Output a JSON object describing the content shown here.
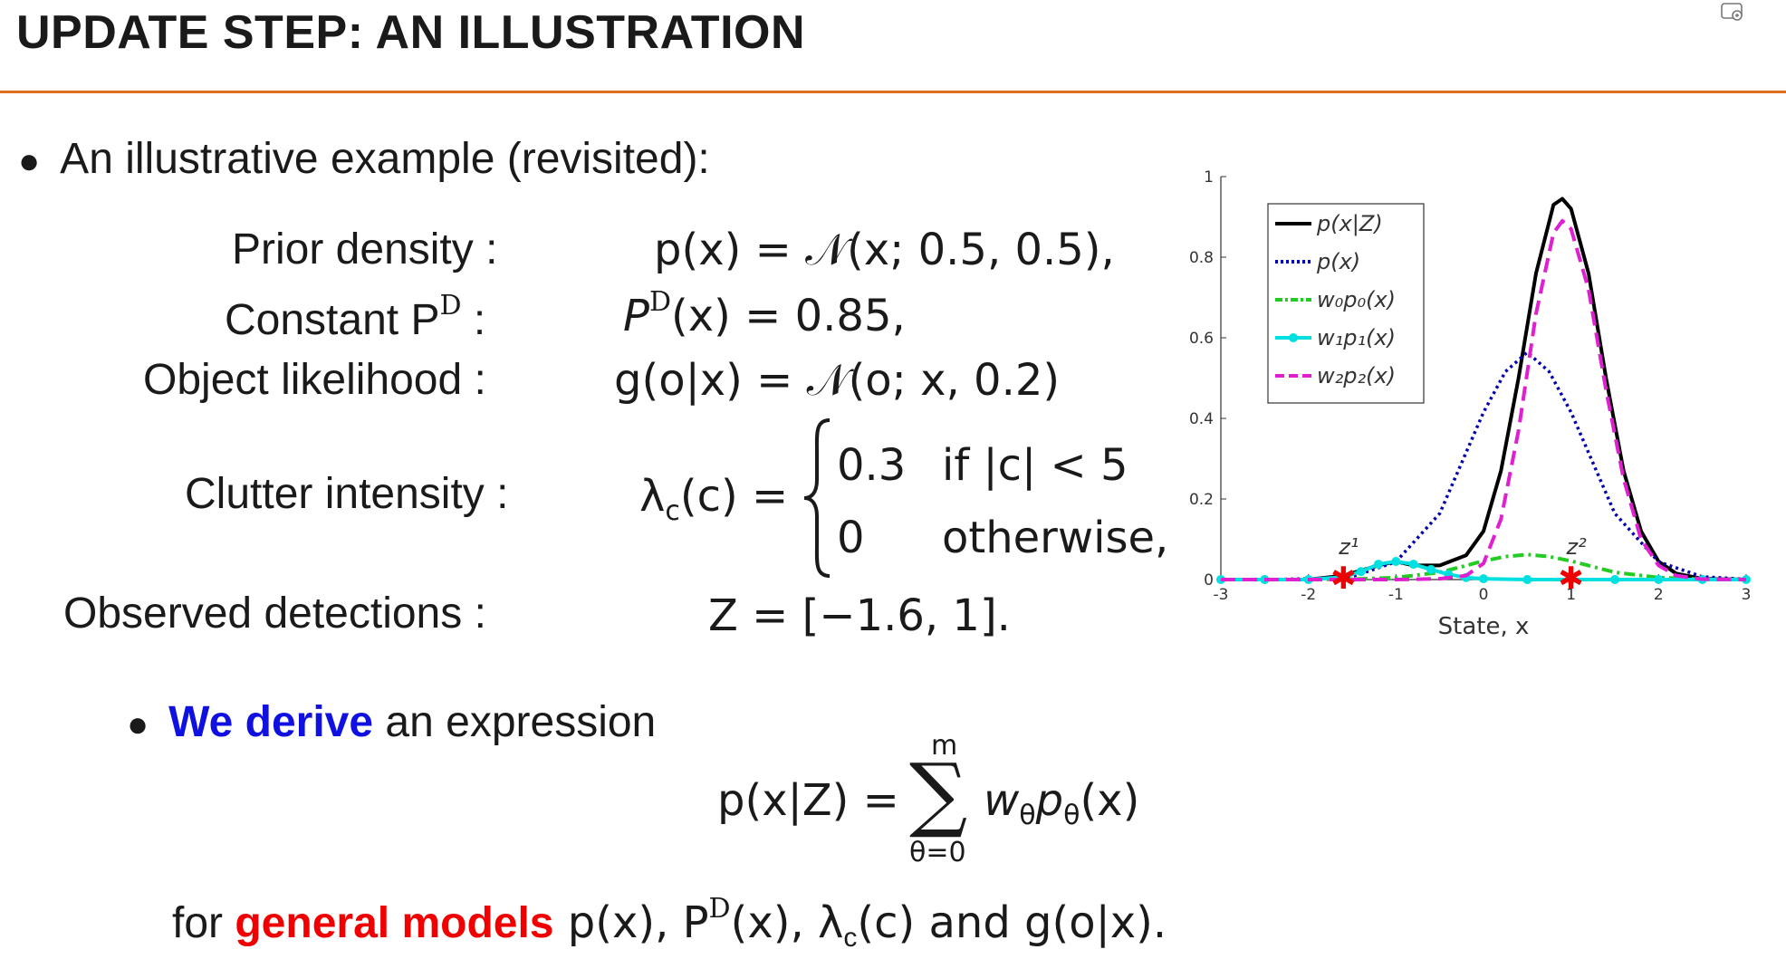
{
  "slide": {
    "title": "UPDATE STEP: AN ILLUSTRATION",
    "bullet1": "An illustrative example (revisited):",
    "labels": {
      "prior": "Prior density :",
      "constant_pd": "Constant P",
      "constant_pd_colon": ":",
      "likelihood": "Object likelihood :",
      "clutter": "Clutter intensity :",
      "observed": "Observed detections :"
    },
    "eq": {
      "prior": "p(x) = 𝒩(x; 0.5, 0.5),",
      "pd": "(x) = 0.85,",
      "likelihood": "g(o|x) = 𝒩(o; x, 0.2)",
      "clutter_lhs": "λ",
      "clutter_lhs_rest": "(c) =",
      "case1_value": "0.3",
      "case1_cond": "if |c| < 5",
      "case2_value": "0",
      "case2_cond": "otherwise,",
      "detections": "Z = [−1.6, 1]."
    },
    "bullet2_highlight": "We derive",
    "bullet2_rest": " an expression",
    "sum_lhs": "p(x|Z) =",
    "sum_upper": "m",
    "sum_lower": "θ=0",
    "sum_rhs": "w",
    "sum_rhs2": "p",
    "sum_rhs3": "(x)",
    "footer_prefix": "for ",
    "footer_highlight": "general models",
    "footer_rest": "  p(x), P",
    "footer_rest2": "(x), λ",
    "footer_rest3": "(c) and g(o|x)."
  },
  "colors": {
    "accent_rule": "#e06c1f",
    "highlight_blue": "#1010e0",
    "highlight_red": "#f00000"
  },
  "chart_data": {
    "type": "line",
    "xlabel": "State, x",
    "ylabel": "",
    "xlim": [
      -3,
      3
    ],
    "ylim": [
      0,
      1
    ],
    "xticks": [
      -3,
      -2,
      -1,
      0,
      1,
      2,
      3
    ],
    "yticks": [
      0,
      0.2,
      0.4,
      0.6,
      0.8,
      1
    ],
    "legend_position": "top-left",
    "grid": false,
    "annotations": [
      {
        "text": "z¹",
        "x": -1.6
      },
      {
        "text": "z²",
        "x": 1
      }
    ],
    "detections": [
      -1.6,
      1
    ],
    "series": [
      {
        "name": "p(x|Z)",
        "color": "#000000",
        "style": "solid",
        "x": [
          -3,
          -2.5,
          -2,
          -1.6,
          -1.2,
          -1,
          -0.8,
          -0.5,
          -0.2,
          0,
          0.2,
          0.4,
          0.6,
          0.8,
          0.9,
          1,
          1.2,
          1.4,
          1.6,
          1.8,
          2,
          2.2,
          2.5,
          3
        ],
        "y": [
          0,
          0,
          0,
          0.01,
          0.035,
          0.045,
          0.035,
          0.035,
          0.06,
          0.12,
          0.27,
          0.5,
          0.76,
          0.93,
          0.945,
          0.92,
          0.76,
          0.5,
          0.27,
          0.12,
          0.045,
          0.015,
          0.002,
          0
        ]
      },
      {
        "name": "p(x)",
        "color": "#0000b0",
        "style": "dotted",
        "x": [
          -3,
          -2.5,
          -2,
          -1.5,
          -1,
          -0.5,
          0,
          0.25,
          0.5,
          0.75,
          1,
          1.5,
          2,
          2.5,
          3
        ],
        "y": [
          0,
          0,
          0.002,
          0.007,
          0.044,
          0.164,
          0.415,
          0.516,
          0.564,
          0.516,
          0.415,
          0.164,
          0.044,
          0.007,
          0.001
        ]
      },
      {
        "name": "w₀p₀(x)",
        "color": "#22cc22",
        "style": "dashdot",
        "x": [
          -3,
          -2.5,
          -2,
          -1.5,
          -1,
          -0.5,
          0,
          0.25,
          0.5,
          0.75,
          1,
          1.5,
          2,
          2.5,
          3
        ],
        "y": [
          0,
          0,
          0,
          0.001,
          0.005,
          0.018,
          0.046,
          0.057,
          0.062,
          0.057,
          0.046,
          0.018,
          0.005,
          0.001,
          0
        ]
      },
      {
        "name": "w₁p₁(x)",
        "color": "#00e0e0",
        "style": "solid-marker",
        "x": [
          -3,
          -2.5,
          -2,
          -1.6,
          -1.4,
          -1.2,
          -1,
          -0.8,
          -0.6,
          -0.4,
          -0.2,
          0,
          0.5,
          1,
          1.5,
          2,
          2.5,
          3
        ],
        "y": [
          0,
          0,
          0,
          0.006,
          0.02,
          0.038,
          0.045,
          0.038,
          0.025,
          0.013,
          0.005,
          0.002,
          0,
          0,
          0,
          0,
          0,
          0
        ]
      },
      {
        "name": "w₂p₂(x)",
        "color": "#e020d0",
        "style": "dashed",
        "x": [
          -3,
          -1,
          -0.5,
          -0.2,
          0,
          0.2,
          0.4,
          0.6,
          0.8,
          0.9,
          1,
          1.2,
          1.4,
          1.6,
          1.8,
          2,
          2.2,
          2.5,
          3
        ],
        "y": [
          0,
          0,
          0.002,
          0.01,
          0.04,
          0.15,
          0.37,
          0.66,
          0.86,
          0.89,
          0.87,
          0.72,
          0.47,
          0.25,
          0.1,
          0.035,
          0.01,
          0.001,
          0
        ]
      }
    ]
  }
}
